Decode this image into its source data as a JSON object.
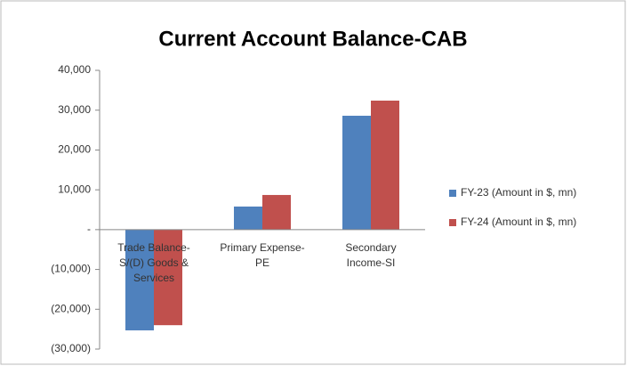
{
  "chart_data": {
    "type": "bar",
    "title": "Current Account Balance-CAB",
    "categories": [
      "Trade Balance-S/(D) Goods & Services",
      "Primary Expense-PE",
      "Secondary Income-SI"
    ],
    "series": [
      {
        "name": "FY-23 (Amount in $, mn)",
        "color": "#4f81bd",
        "values": [
          -25300,
          5800,
          28600
        ]
      },
      {
        "name": "FY-24 (Amount in $, mn)",
        "color": "#c0504d",
        "values": [
          -24000,
          8700,
          32400
        ]
      }
    ],
    "ylim": [
      -30000,
      40000
    ],
    "yticks": [
      {
        "value": -30000,
        "label": "(30,000)"
      },
      {
        "value": -20000,
        "label": "(20,000)"
      },
      {
        "value": -10000,
        "label": "(10,000)"
      },
      {
        "value": 0,
        "label": "-"
      },
      {
        "value": 10000,
        "label": "10,000"
      },
      {
        "value": 20000,
        "label": "20,000"
      },
      {
        "value": 30000,
        "label": "30,000"
      },
      {
        "value": 40000,
        "label": "40,000"
      }
    ],
    "grid": false,
    "legend": "right"
  }
}
